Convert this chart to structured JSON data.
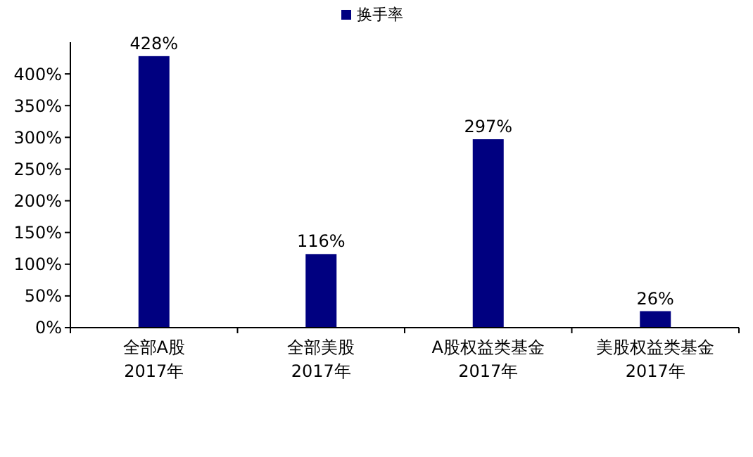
{
  "chart_data": {
    "type": "bar",
    "categories": [
      "全部A股\n2017年",
      "全部美股\n2017年",
      "A股权益类基金\n2017年",
      "美股权益类基金\n2017年"
    ],
    "series": [
      {
        "name": "换手率",
        "color": "#000080",
        "values": [
          428,
          116,
          297,
          26
        ]
      }
    ],
    "value_labels": [
      "428%",
      "116%",
      "297%",
      "26%"
    ],
    "ylim": [
      0,
      450
    ],
    "yticks": [
      {
        "value": 0,
        "label": "0%"
      },
      {
        "value": 50,
        "label": "50%"
      },
      {
        "value": 100,
        "label": "100%"
      },
      {
        "value": 150,
        "label": "150%"
      },
      {
        "value": 200,
        "label": "200%"
      },
      {
        "value": 250,
        "label": "250%"
      },
      {
        "value": 300,
        "label": "300%"
      },
      {
        "value": 350,
        "label": "350%"
      },
      {
        "value": 400,
        "label": "400%"
      }
    ],
    "legend": "top",
    "grid": false
  }
}
